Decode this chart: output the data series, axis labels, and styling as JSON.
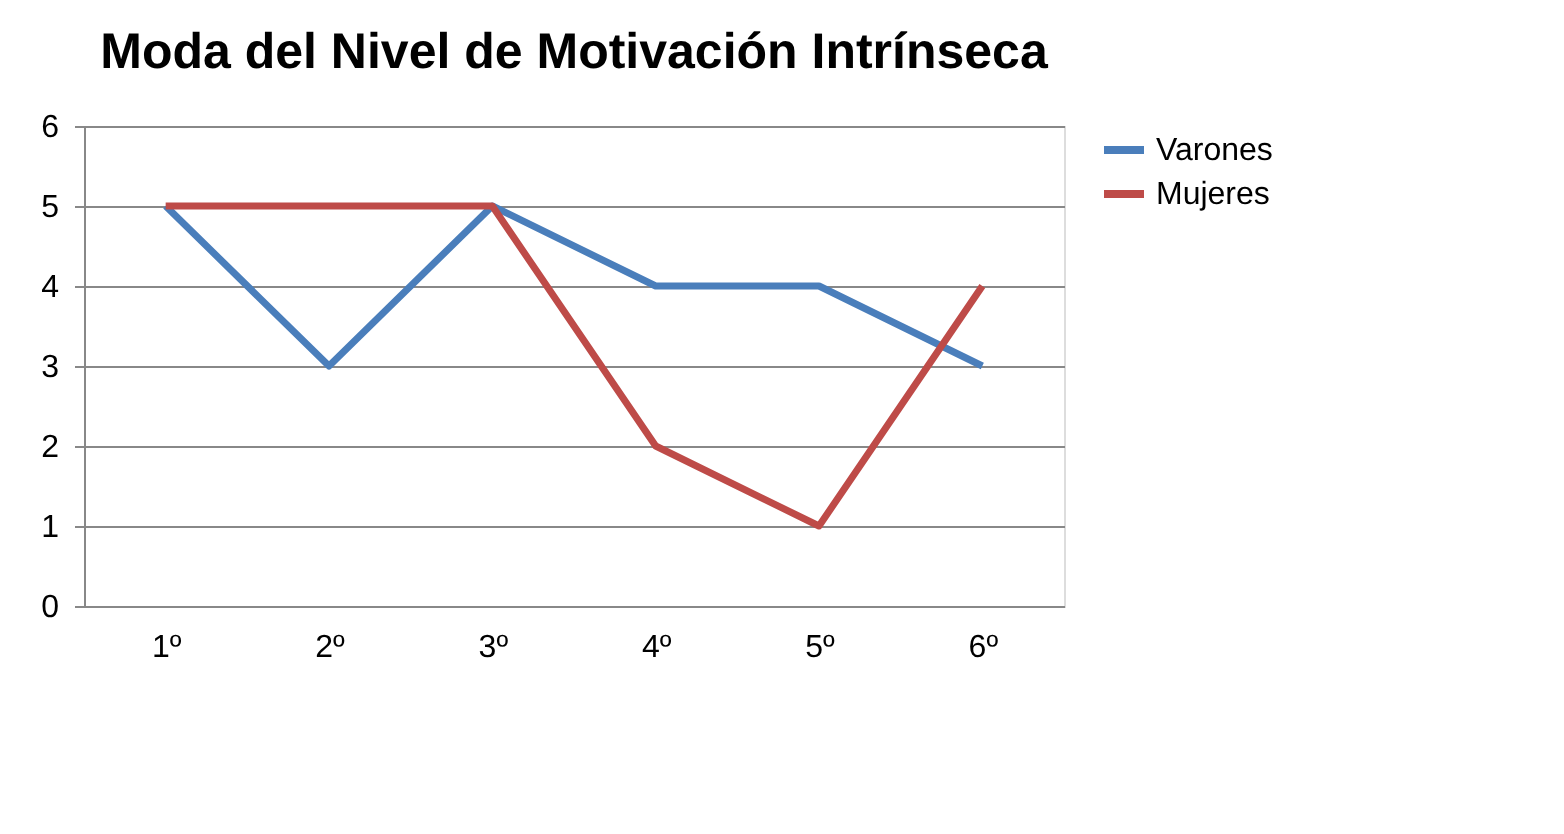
{
  "chart_data": {
    "type": "line",
    "title": "Moda del Nivel de Motivación Intrínseca",
    "categories": [
      "1º",
      "2º",
      "3º",
      "4º",
      "5º",
      "6º"
    ],
    "series": [
      {
        "name": "Varones",
        "color": "#4a7ebb",
        "values": [
          5,
          3,
          5,
          4,
          4,
          3
        ]
      },
      {
        "name": "Mujeres",
        "color": "#be4b48",
        "values": [
          5,
          5,
          5,
          2,
          1,
          4
        ]
      }
    ],
    "ylim": [
      0,
      6
    ],
    "yticks": [
      0,
      1,
      2,
      3,
      4,
      5,
      6
    ],
    "grid": "y",
    "legend": "right",
    "marker": "none",
    "line_style": "solid"
  }
}
